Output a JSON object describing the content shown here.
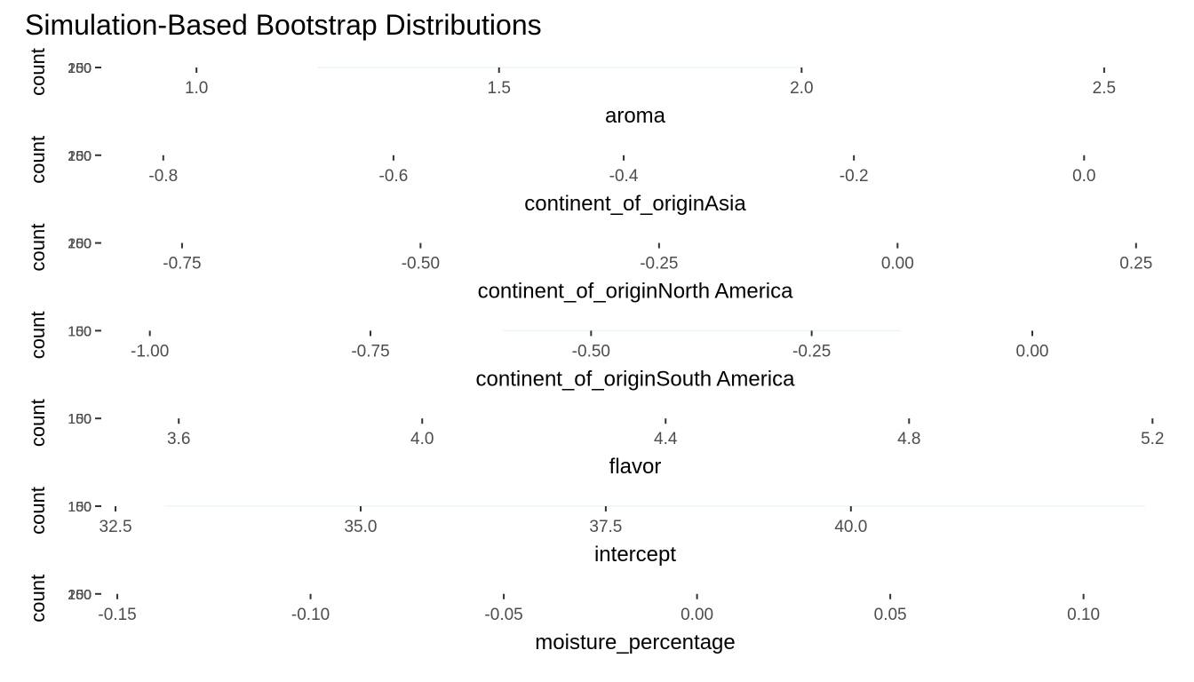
{
  "title": "Simulation-Based Bootstrap Distributions",
  "colors": {
    "tick": "#333333",
    "ticklabel": "#4d4d4d",
    "text": "#000000",
    "trace": "#e0f3f3"
  },
  "chart_data": {
    "type": "histogram",
    "title": "Simulation-Based Bootstrap Distributions",
    "facets_panels": [
      {
        "name": "aroma",
        "xlabel": "aroma",
        "ylabel": "count",
        "xlim": [
          0.85,
          2.6
        ],
        "x_ticks": [
          1.0,
          1.5,
          2.0,
          2.5
        ],
        "x_tick_labels": [
          "1.0",
          "1.5",
          "2.0",
          "2.5"
        ],
        "y_tick_labels": [
          "0",
          "50",
          "100",
          "150",
          "200",
          "250"
        ],
        "visible_data_range": [
          1.2,
          2.0
        ]
      },
      {
        "name": "continent_of_originAsia",
        "xlabel": "continent_of_originAsia",
        "ylabel": "count",
        "xlim": [
          -0.85,
          0.07
        ],
        "x_ticks": [
          -0.8,
          -0.6,
          -0.4,
          -0.2,
          0.0
        ],
        "x_tick_labels": [
          "-0.8",
          "-0.6",
          "-0.4",
          "-0.2",
          "0.0"
        ],
        "y_tick_labels": [
          "0",
          "50",
          "100",
          "150",
          "200",
          "250"
        ],
        "visible_data_range": null
      },
      {
        "name": "continent_of_originNorth America",
        "xlabel": "continent_of_originNorth America",
        "ylabel": "count",
        "xlim": [
          -0.83,
          0.28
        ],
        "x_ticks": [
          -0.75,
          -0.5,
          -0.25,
          0.0,
          0.25
        ],
        "x_tick_labels": [
          "-0.75",
          "-0.50",
          "-0.25",
          "0.00",
          "0.25"
        ],
        "y_tick_labels": [
          "0",
          "50",
          "100",
          "150",
          "200",
          "250"
        ],
        "visible_data_range": null
      },
      {
        "name": "continent_of_originSouth America",
        "xlabel": "continent_of_originSouth America",
        "ylabel": "count",
        "xlim": [
          -1.05,
          0.15
        ],
        "x_ticks": [
          -1.0,
          -0.75,
          -0.5,
          -0.25,
          0.0
        ],
        "x_tick_labels": [
          "-1.00",
          "-0.75",
          "-0.50",
          "-0.25",
          "0.00"
        ],
        "y_tick_labels": [
          "0",
          "50",
          "100",
          "150"
        ],
        "visible_data_range": [
          -0.6,
          -0.15
        ]
      },
      {
        "name": "flavor",
        "xlabel": "flavor",
        "ylabel": "count",
        "xlim": [
          3.48,
          5.22
        ],
        "x_ticks": [
          3.6,
          4.0,
          4.4,
          4.8,
          5.2
        ],
        "x_tick_labels": [
          "3.6",
          "4.0",
          "4.4",
          "4.8",
          "5.2"
        ],
        "y_tick_labels": [
          "0",
          "50",
          "100",
          "150"
        ],
        "visible_data_range": null
      },
      {
        "name": "intercept",
        "xlabel": "intercept",
        "ylabel": "count",
        "xlim": [
          32.4,
          43.2
        ],
        "x_ticks": [
          32.5,
          35.0,
          37.5,
          40.0
        ],
        "x_tick_labels": [
          "32.5",
          "35.0",
          "37.5",
          "40.0"
        ],
        "y_tick_labels": [
          "0",
          "50",
          "100",
          "150"
        ],
        "visible_data_range": [
          33.0,
          43.0
        ]
      },
      {
        "name": "moisture_percentage",
        "xlabel": "moisture_percentage",
        "ylabel": "count",
        "xlim": [
          -0.153,
          0.121
        ],
        "x_ticks": [
          -0.15,
          -0.1,
          -0.05,
          0.0,
          0.05,
          0.1
        ],
        "x_tick_labels": [
          "-0.15",
          "-0.10",
          "-0.05",
          "0.00",
          "0.05",
          "0.10"
        ],
        "y_tick_labels": [
          "0",
          "50",
          "100",
          "150",
          "200",
          "250"
        ],
        "visible_data_range": null
      }
    ]
  }
}
